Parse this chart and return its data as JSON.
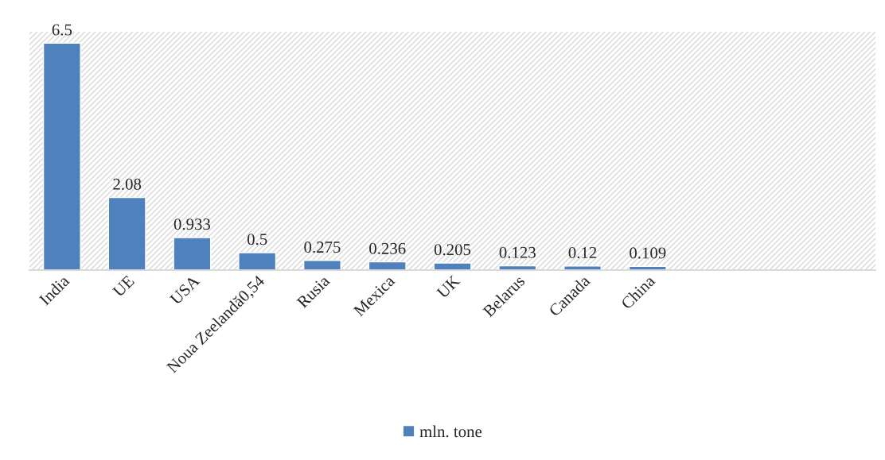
{
  "chart_data": {
    "type": "bar",
    "categories": [
      "India",
      "UE",
      "USA",
      "Noua Zeelandă0,54",
      "Rusia",
      "Mexica",
      "UK",
      "Belarus",
      "Canada",
      "China",
      null,
      null,
      null
    ],
    "series": [
      {
        "name": "mln. tone",
        "color": "#4f81bd",
        "values": [
          6.5,
          2.08,
          0.933,
          0.5,
          0.275,
          0.236,
          0.205,
          0.123,
          0.12,
          0.109,
          null,
          null,
          null
        ]
      }
    ],
    "data_labels": true,
    "tick_labels": "x",
    "grid": false,
    "legend": "bottom"
  }
}
